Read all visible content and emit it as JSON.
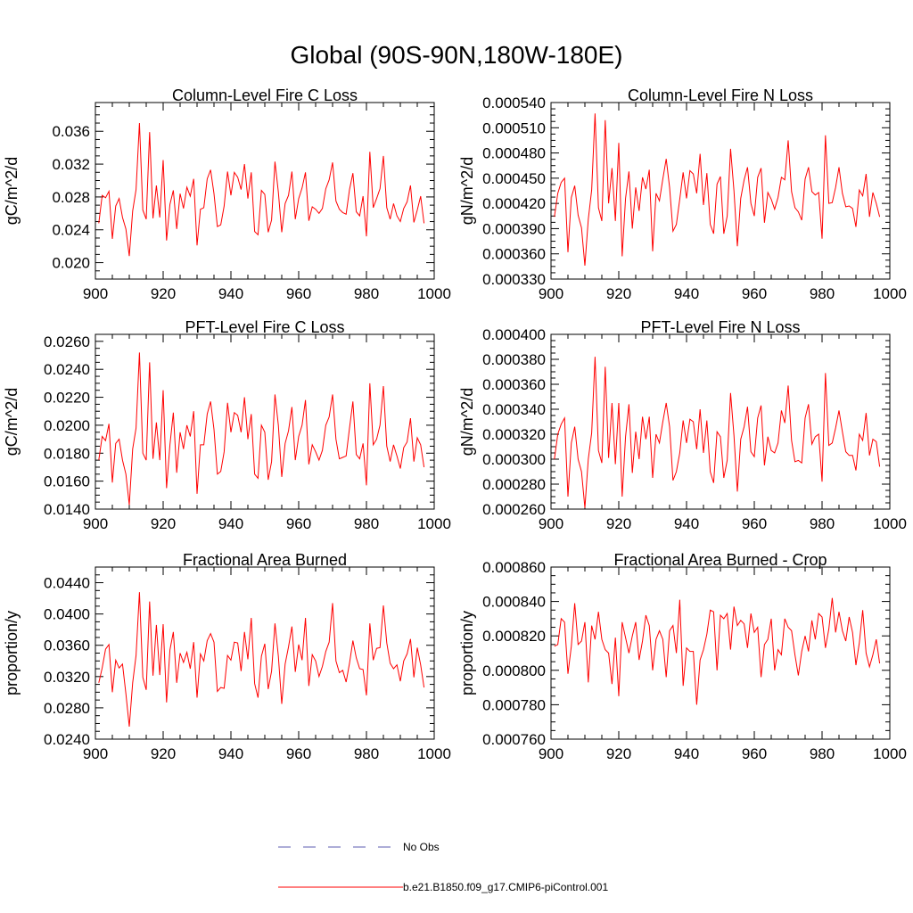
{
  "title": "Global (90S-90N,180W-180E)",
  "colors": {
    "series": "#ff0000",
    "obs": "#5b5bb0",
    "axis": "#000000"
  },
  "legend": {
    "placement": "bottom-center",
    "items": [
      {
        "label": "No Obs",
        "style": "dashed",
        "color": "#5b5bb0"
      },
      {
        "label": "b.e21.B1850.f09_g17.CMIP6-piControl.001",
        "style": "solid",
        "color": "#ff0000"
      }
    ]
  },
  "chart_data": [
    {
      "type": "line",
      "title": "Column-Level Fire C Loss",
      "ylabel": "gC/m^2/d",
      "xlabel": "",
      "xlim": [
        900,
        1000
      ],
      "ylim": [
        0.018,
        0.0395
      ],
      "xticks": [
        "900",
        "920",
        "940",
        "960",
        "980",
        "1000"
      ],
      "yticks": [
        "0.020",
        "0.024",
        "0.028",
        "0.032",
        "0.036"
      ],
      "ytick_values": [
        0.02,
        0.024,
        0.028,
        0.032,
        0.036
      ],
      "series": [
        {
          "values": [
            0.0248,
            0.0282,
            0.0279,
            0.0287,
            0.0229,
            0.0269,
            0.0278,
            0.0255,
            0.0241,
            0.0208,
            0.0263,
            0.0289,
            0.037,
            0.0264,
            0.0253,
            0.0359,
            0.0254,
            0.0294,
            0.0255,
            0.0325,
            0.0227,
            0.0271,
            0.0288,
            0.0241,
            0.0284,
            0.0266,
            0.0292,
            0.0281,
            0.0302,
            0.0221,
            0.0265,
            0.0267,
            0.0302,
            0.0313,
            0.0284,
            0.0244,
            0.0246,
            0.0269,
            0.0311,
            0.0282,
            0.031,
            0.0304,
            0.0289,
            0.032,
            0.0278,
            0.031,
            0.0238,
            0.0234,
            0.0288,
            0.0283,
            0.0237,
            0.0252,
            0.0323,
            0.0286,
            0.0237,
            0.0272,
            0.0282,
            0.0311,
            0.0253,
            0.0278,
            0.0291,
            0.031,
            0.0251,
            0.0268,
            0.0265,
            0.026,
            0.0266,
            0.029,
            0.0301,
            0.0322,
            0.0275,
            0.0265,
            0.0261,
            0.0259,
            0.0289,
            0.0309,
            0.0262,
            0.0257,
            0.0281,
            0.0232,
            0.0335,
            0.0267,
            0.0278,
            0.029,
            0.033,
            0.0267,
            0.0253,
            0.0272,
            0.0257,
            0.025,
            0.0266,
            0.0274,
            0.0294,
            0.0249,
            0.0264,
            0.0281,
            0.0248
          ]
        }
      ]
    },
    {
      "type": "line",
      "title": "Column-Level Fire N Loss",
      "ylabel": "gN/m^2/d",
      "xlabel": "",
      "xlim": [
        900,
        1000
      ],
      "ylim": [
        0.00033,
        0.00054
      ],
      "xticks": [
        "900",
        "920",
        "940",
        "960",
        "980",
        "1000"
      ],
      "yticks": [
        "0.000330",
        "0.000360",
        "0.000390",
        "0.000420",
        "0.000450",
        "0.000480",
        "0.000510",
        "0.000540"
      ],
      "ytick_values": [
        0.00033,
        0.00036,
        0.00039,
        0.00042,
        0.00045,
        0.00048,
        0.00051,
        0.00054
      ],
      "series": [
        {
          "values": [
            0.000404,
            0.000432,
            0.000445,
            0.00045,
            0.000362,
            0.000427,
            0.000441,
            0.000406,
            0.000391,
            0.000346,
            0.000401,
            0.000436,
            0.000527,
            0.000415,
            0.000399,
            0.000519,
            0.00042,
            0.000462,
            0.000399,
            0.000492,
            0.000357,
            0.000426,
            0.000458,
            0.00039,
            0.000439,
            0.000411,
            0.000451,
            0.000437,
            0.00046,
            0.000363,
            0.000432,
            0.000423,
            0.000449,
            0.000473,
            0.000439,
            0.000387,
            0.000395,
            0.000425,
            0.000457,
            0.000426,
            0.000459,
            0.000455,
            0.000432,
            0.000479,
            0.000418,
            0.000456,
            0.000395,
            0.000384,
            0.000443,
            0.000452,
            0.000384,
            0.000405,
            0.000485,
            0.000435,
            0.000369,
            0.000426,
            0.000448,
            0.000463,
            0.00042,
            0.000405,
            0.000451,
            0.000462,
            0.000397,
            0.000433,
            0.000425,
            0.000413,
            0.000427,
            0.000451,
            0.000448,
            0.000495,
            0.000434,
            0.000415,
            0.00041,
            0.0004,
            0.000449,
            0.000463,
            0.000434,
            0.00043,
            0.000433,
            0.000378,
            0.000501,
            0.00042,
            0.000421,
            0.000439,
            0.000463,
            0.000432,
            0.000416,
            0.000417,
            0.000414,
            0.000392,
            0.000436,
            0.000429,
            0.000455,
            0.000404,
            0.000433,
            0.00042,
            0.000404
          ]
        }
      ]
    },
    {
      "type": "line",
      "title": "PFT-Level Fire C Loss",
      "ylabel": "gC/m^2/d",
      "xlabel": "",
      "xlim": [
        900,
        1000
      ],
      "ylim": [
        0.014,
        0.0265
      ],
      "xticks": [
        "900",
        "920",
        "940",
        "960",
        "980",
        "1000"
      ],
      "yticks": [
        "0.0140",
        "0.0160",
        "0.0180",
        "0.0200",
        "0.0220",
        "0.0240",
        "0.0260"
      ],
      "ytick_values": [
        0.014,
        0.016,
        0.018,
        0.02,
        0.022,
        0.024,
        0.026
      ],
      "series": [
        {
          "values": [
            0.0175,
            0.0192,
            0.0189,
            0.0201,
            0.0159,
            0.0187,
            0.019,
            0.0175,
            0.0165,
            0.0143,
            0.0183,
            0.0198,
            0.0252,
            0.018,
            0.0175,
            0.0245,
            0.0176,
            0.0202,
            0.0175,
            0.0225,
            0.0155,
            0.0186,
            0.0209,
            0.0166,
            0.0195,
            0.0183,
            0.02,
            0.0192,
            0.021,
            0.0151,
            0.0186,
            0.0186,
            0.0208,
            0.0217,
            0.0197,
            0.0165,
            0.0167,
            0.0181,
            0.0216,
            0.0195,
            0.0209,
            0.0207,
            0.0195,
            0.022,
            0.019,
            0.0208,
            0.0165,
            0.0162,
            0.02,
            0.0195,
            0.0161,
            0.0174,
            0.0222,
            0.02,
            0.0163,
            0.0187,
            0.0196,
            0.0213,
            0.0175,
            0.0192,
            0.02,
            0.0218,
            0.0172,
            0.0186,
            0.0181,
            0.0175,
            0.0182,
            0.02,
            0.0206,
            0.0222,
            0.019,
            0.0176,
            0.0177,
            0.0178,
            0.0198,
            0.0217,
            0.0179,
            0.0176,
            0.0187,
            0.0157,
            0.023,
            0.0186,
            0.019,
            0.02,
            0.0228,
            0.0185,
            0.0174,
            0.0186,
            0.0178,
            0.0169,
            0.0184,
            0.0188,
            0.0205,
            0.0174,
            0.0191,
            0.0186,
            0.017
          ]
        }
      ]
    },
    {
      "type": "line",
      "title": "PFT-Level Fire N Loss",
      "ylabel": "gN/m^2/d",
      "xlabel": "",
      "xlim": [
        900,
        1000
      ],
      "ylim": [
        0.00026,
        0.0004
      ],
      "xticks": [
        "900",
        "920",
        "940",
        "960",
        "980",
        "1000"
      ],
      "yticks": [
        "0.000260",
        "0.000280",
        "0.000300",
        "0.000320",
        "0.000340",
        "0.000360",
        "0.000380",
        "0.000400"
      ],
      "ytick_values": [
        0.00026,
        0.00028,
        0.0003,
        0.00032,
        0.00034,
        0.00036,
        0.00038,
        0.0004
      ],
      "series": [
        {
          "values": [
            0.0003,
            0.00032,
            0.000328,
            0.000333,
            0.00027,
            0.000313,
            0.000326,
            0.0003,
            0.00029,
            0.000261,
            0.0003,
            0.000321,
            0.000382,
            0.000307,
            0.000297,
            0.000374,
            0.000301,
            0.000345,
            0.000296,
            0.000345,
            0.00027,
            0.000318,
            0.000344,
            0.000289,
            0.000322,
            0.0003,
            0.000334,
            0.000316,
            0.000334,
            0.000285,
            0.00032,
            0.000313,
            0.00033,
            0.000345,
            0.000326,
            0.000283,
            0.00029,
            0.000305,
            0.000331,
            0.000313,
            0.000332,
            0.00033,
            0.000308,
            0.00034,
            0.000305,
            0.000331,
            0.00029,
            0.000281,
            0.000322,
            0.000318,
            0.000285,
            0.000299,
            0.000353,
            0.000319,
            0.000274,
            0.000316,
            0.000326,
            0.000342,
            0.000306,
            0.000302,
            0.000333,
            0.000343,
            0.000295,
            0.000318,
            0.000307,
            0.000305,
            0.000313,
            0.000339,
            0.000329,
            0.000359,
            0.000315,
            0.000298,
            0.000299,
            0.000297,
            0.000333,
            0.000344,
            0.000312,
            0.000318,
            0.00032,
            0.000282,
            0.000369,
            0.000311,
            0.000313,
            0.000325,
            0.000339,
            0.000322,
            0.000306,
            0.000303,
            0.000303,
            0.000291,
            0.00032,
            0.000315,
            0.000337,
            0.000303,
            0.000316,
            0.000314,
            0.000294
          ]
        }
      ]
    },
    {
      "type": "line",
      "title": "Fractional Area Burned",
      "ylabel": "proportion/y",
      "xlabel": "",
      "xlim": [
        900,
        1000
      ],
      "ylim": [
        0.024,
        0.046
      ],
      "xticks": [
        "900",
        "920",
        "940",
        "960",
        "980",
        "1000"
      ],
      "yticks": [
        "0.0240",
        "0.0280",
        "0.0320",
        "0.0360",
        "0.0400",
        "0.0440"
      ],
      "ytick_values": [
        0.024,
        0.028,
        0.032,
        0.036,
        0.04,
        0.044
      ],
      "series": [
        {
          "values": [
            0.0312,
            0.0331,
            0.0355,
            0.0361,
            0.03,
            0.0341,
            0.0331,
            0.0336,
            0.0298,
            0.0256,
            0.0312,
            0.0347,
            0.0428,
            0.0319,
            0.0303,
            0.0416,
            0.0321,
            0.0386,
            0.0322,
            0.0387,
            0.0287,
            0.0354,
            0.0377,
            0.0312,
            0.035,
            0.0338,
            0.0351,
            0.033,
            0.0364,
            0.0293,
            0.0349,
            0.034,
            0.0366,
            0.0375,
            0.0364,
            0.0301,
            0.0306,
            0.0305,
            0.0347,
            0.0341,
            0.0364,
            0.0363,
            0.0327,
            0.0377,
            0.0342,
            0.0395,
            0.0311,
            0.0293,
            0.0346,
            0.0362,
            0.0304,
            0.0327,
            0.0388,
            0.0346,
            0.0285,
            0.0336,
            0.0358,
            0.0384,
            0.0326,
            0.0361,
            0.0341,
            0.0395,
            0.0308,
            0.0348,
            0.034,
            0.032,
            0.0333,
            0.0352,
            0.0364,
            0.0414,
            0.034,
            0.0325,
            0.0328,
            0.0313,
            0.0337,
            0.0366,
            0.0344,
            0.033,
            0.0329,
            0.0296,
            0.0388,
            0.0341,
            0.0356,
            0.0357,
            0.0411,
            0.0363,
            0.0337,
            0.033,
            0.0335,
            0.0314,
            0.034,
            0.0349,
            0.0368,
            0.0319,
            0.0357,
            0.0335,
            0.0306
          ]
        }
      ]
    },
    {
      "type": "line",
      "title": "Fractional Area Burned - Crop",
      "ylabel": "proportion/y",
      "xlabel": "",
      "xlim": [
        900,
        1000
      ],
      "ylim": [
        0.00076,
        0.00086
      ],
      "xticks": [
        "900",
        "920",
        "940",
        "960",
        "980",
        "1000"
      ],
      "yticks": [
        "0.000760",
        "0.000780",
        "0.000800",
        "0.000820",
        "0.000840",
        "0.000860"
      ],
      "ytick_values": [
        0.00076,
        0.00078,
        0.0008,
        0.00082,
        0.00084,
        0.00086
      ],
      "series": [
        {
          "values": [
            0.000814,
            0.000815,
            0.00083,
            0.000828,
            0.000798,
            0.000814,
            0.000839,
            0.000815,
            0.000817,
            0.000828,
            0.000793,
            0.000826,
            0.000818,
            0.000834,
            0.000818,
            0.000812,
            0.00081,
            0.000792,
            0.000819,
            0.000785,
            0.000828,
            0.000819,
            0.00081,
            0.00082,
            0.000828,
            0.000806,
            0.000817,
            0.000832,
            0.000826,
            0.0008,
            0.000818,
            0.000823,
            0.000818,
            0.000796,
            0.000823,
            0.000826,
            0.00081,
            0.000841,
            0.000791,
            0.000813,
            0.000811,
            0.000811,
            0.00078,
            0.000806,
            0.000812,
            0.000821,
            0.000835,
            0.000834,
            0.0008,
            0.000832,
            0.00083,
            0.000833,
            0.000812,
            0.000837,
            0.000826,
            0.000829,
            0.000827,
            0.000813,
            0.000833,
            0.000822,
            0.000825,
            0.000796,
            0.000815,
            0.000818,
            0.00083,
            0.0008,
            0.000812,
            0.000809,
            0.00083,
            0.000825,
            0.000823,
            0.000809,
            0.000797,
            0.000811,
            0.00082,
            0.000811,
            0.000829,
            0.000818,
            0.000833,
            0.000831,
            0.000813,
            0.000824,
            0.000842,
            0.000822,
            0.000834,
            0.000823,
            0.000817,
            0.000831,
            0.000822,
            0.000803,
            0.000816,
            0.000835,
            0.00081,
            0.000802,
            0.000809,
            0.000818,
            0.000804
          ]
        }
      ]
    }
  ]
}
